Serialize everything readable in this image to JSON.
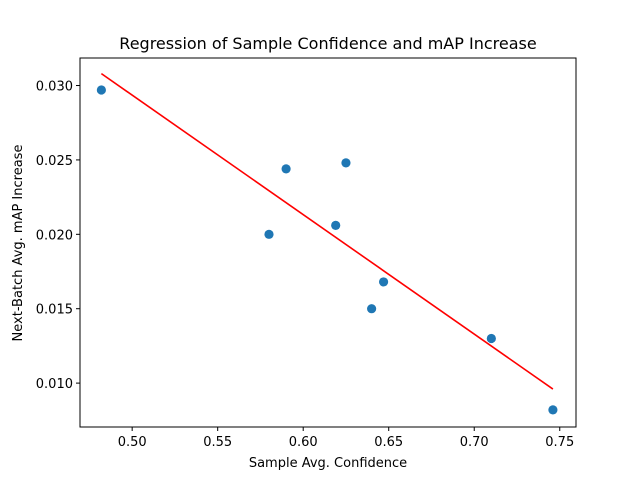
{
  "chart_data": {
    "type": "scatter",
    "title": "Regression of Sample Confidence and mAP Increase",
    "xlabel": "Sample Avg. Confidence",
    "ylabel": "Next-Batch Avg. mAP Increase",
    "xlim": [
      0.4695,
      0.7595
    ],
    "ylim": [
      0.00705,
      0.03185
    ],
    "xticks": [
      0.5,
      0.55,
      0.6,
      0.65,
      0.7,
      0.75
    ],
    "xtick_labels": [
      "0.50",
      "0.55",
      "0.60",
      "0.65",
      "0.70",
      "0.75"
    ],
    "yticks": [
      0.01,
      0.015,
      0.02,
      0.025,
      0.03
    ],
    "ytick_labels": [
      "0.010",
      "0.015",
      "0.020",
      "0.025",
      "0.030"
    ],
    "grid": false,
    "points": [
      {
        "x": 0.482,
        "y": 0.0297
      },
      {
        "x": 0.58,
        "y": 0.02
      },
      {
        "x": 0.59,
        "y": 0.0244
      },
      {
        "x": 0.619,
        "y": 0.0206
      },
      {
        "x": 0.625,
        "y": 0.0248
      },
      {
        "x": 0.64,
        "y": 0.015
      },
      {
        "x": 0.647,
        "y": 0.0168
      },
      {
        "x": 0.71,
        "y": 0.013
      },
      {
        "x": 0.746,
        "y": 0.0082
      }
    ],
    "point_color": "#1f77b4",
    "regression_line": {
      "color": "#ff0000",
      "x": [
        0.482,
        0.746
      ],
      "y": [
        0.0308,
        0.0096
      ]
    }
  }
}
